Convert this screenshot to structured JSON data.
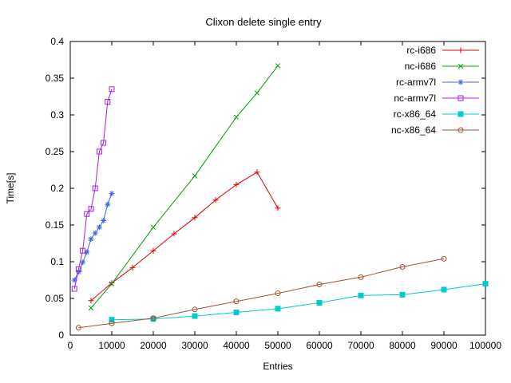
{
  "chart_data": {
    "type": "line",
    "title": "Clixon delete single entry",
    "xlabel": "Entries",
    "ylabel": "Time[s]",
    "xlim": [
      0,
      100000
    ],
    "ylim": [
      0,
      0.4
    ],
    "xtick_step": 10000,
    "ytick_step": 0.05,
    "grid": false,
    "legend_position": "top-right-inside",
    "series": [
      {
        "name": "rc-i686",
        "color": "#dd0000",
        "marker": "plus",
        "points": [
          [
            5000,
            0.047
          ],
          [
            10000,
            0.071
          ],
          [
            15000,
            0.092
          ],
          [
            20000,
            0.115
          ],
          [
            25000,
            0.138
          ],
          [
            30000,
            0.16
          ],
          [
            35000,
            0.184
          ],
          [
            40000,
            0.205
          ],
          [
            45000,
            0.222
          ],
          [
            50000,
            0.173
          ]
        ]
      },
      {
        "name": "nc-i686",
        "color": "#00a000",
        "marker": "cross",
        "points": [
          [
            5000,
            0.037
          ],
          [
            10000,
            0.07
          ],
          [
            20000,
            0.147
          ],
          [
            30000,
            0.217
          ],
          [
            40000,
            0.297
          ],
          [
            45000,
            0.33
          ],
          [
            50000,
            0.367
          ]
        ]
      },
      {
        "name": "rc-armv7l",
        "color": "#4169e1",
        "marker": "asterisk",
        "points": [
          [
            1000,
            0.075
          ],
          [
            2000,
            0.086
          ],
          [
            3000,
            0.099
          ],
          [
            4000,
            0.113
          ],
          [
            5000,
            0.131
          ],
          [
            6000,
            0.139
          ],
          [
            7000,
            0.147
          ],
          [
            8000,
            0.156
          ],
          [
            9000,
            0.178
          ],
          [
            10000,
            0.193
          ]
        ]
      },
      {
        "name": "nc-armv7l",
        "color": "#a020f0",
        "marker": "square-open",
        "points": [
          [
            1000,
            0.063
          ],
          [
            2000,
            0.09
          ],
          [
            3000,
            0.115
          ],
          [
            4000,
            0.165
          ],
          [
            5000,
            0.172
          ],
          [
            6000,
            0.2
          ],
          [
            7000,
            0.25
          ],
          [
            8000,
            0.262
          ],
          [
            9000,
            0.318
          ],
          [
            10000,
            0.335
          ]
        ]
      },
      {
        "name": "rc-x86_64",
        "color": "#00cccc",
        "marker": "square-filled",
        "points": [
          [
            10000,
            0.021
          ],
          [
            20000,
            0.022
          ],
          [
            30000,
            0.026
          ],
          [
            40000,
            0.031
          ],
          [
            50000,
            0.036
          ],
          [
            60000,
            0.044
          ],
          [
            70000,
            0.054
          ],
          [
            80000,
            0.055
          ],
          [
            90000,
            0.062
          ],
          [
            100000,
            0.07
          ]
        ]
      },
      {
        "name": "nc-x86_64",
        "color": "#a0522d",
        "marker": "circle-open",
        "points": [
          [
            2000,
            0.01
          ],
          [
            10000,
            0.016
          ],
          [
            20000,
            0.023
          ],
          [
            30000,
            0.035
          ],
          [
            40000,
            0.046
          ],
          [
            50000,
            0.057
          ],
          [
            60000,
            0.069
          ],
          [
            70000,
            0.079
          ],
          [
            80000,
            0.093
          ],
          [
            90000,
            0.104
          ]
        ]
      }
    ]
  }
}
